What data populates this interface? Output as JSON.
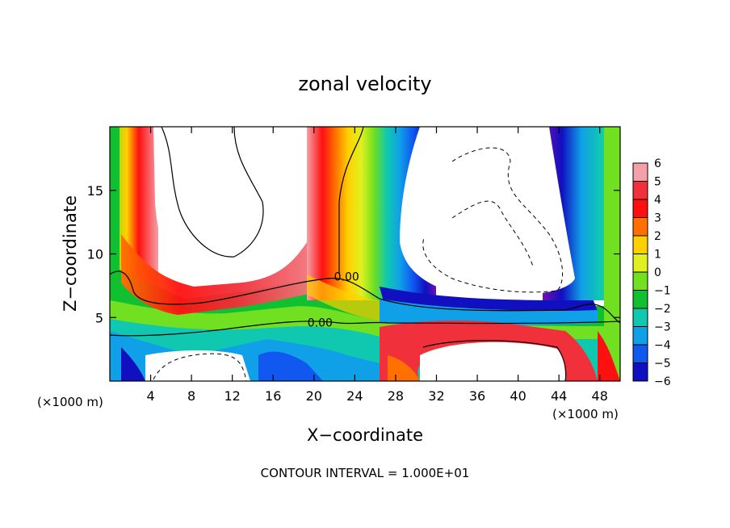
{
  "chart_data": {
    "type": "heatmap",
    "title": "zonal velocity",
    "xlabel": "X−coordinate",
    "ylabel": "Z−coordinate",
    "x_unit_left": "(×1000 m)",
    "x_unit_right": "(×1000 m)",
    "xlim": [
      0,
      50
    ],
    "ylim": [
      0,
      20
    ],
    "x_ticks": [
      4,
      8,
      12,
      16,
      20,
      24,
      28,
      32,
      36,
      40,
      44,
      48
    ],
    "y_ticks": [
      5,
      10,
      15
    ],
    "colorbar": {
      "levels": [
        6,
        5,
        4,
        3,
        2,
        1,
        0,
        -1,
        -2,
        -3,
        -4,
        -5,
        -6
      ],
      "labels": [
        "6",
        "5",
        "4",
        "3",
        "2",
        "1",
        "0",
        "−1",
        "−2",
        "−3",
        "−4",
        "−5",
        "−6"
      ],
      "colors": [
        "#f4a0a8",
        "#f0303a",
        "#ff1010",
        "#ff7000",
        "#ffd000",
        "#e0f020",
        "#70e020",
        "#10c030",
        "#10c8b0",
        "#10a0e8",
        "#1058f0",
        "#1010c0",
        "#7010b0"
      ]
    },
    "contour_labels": [
      {
        "text": "0.00",
        "x": 23.2,
        "y": 7.9
      },
      {
        "text": "0.00",
        "x": 20.6,
        "y": 4.3
      }
    ],
    "footer": "CONTOUR INTERVAL = 1.000E+01",
    "grid": false
  }
}
